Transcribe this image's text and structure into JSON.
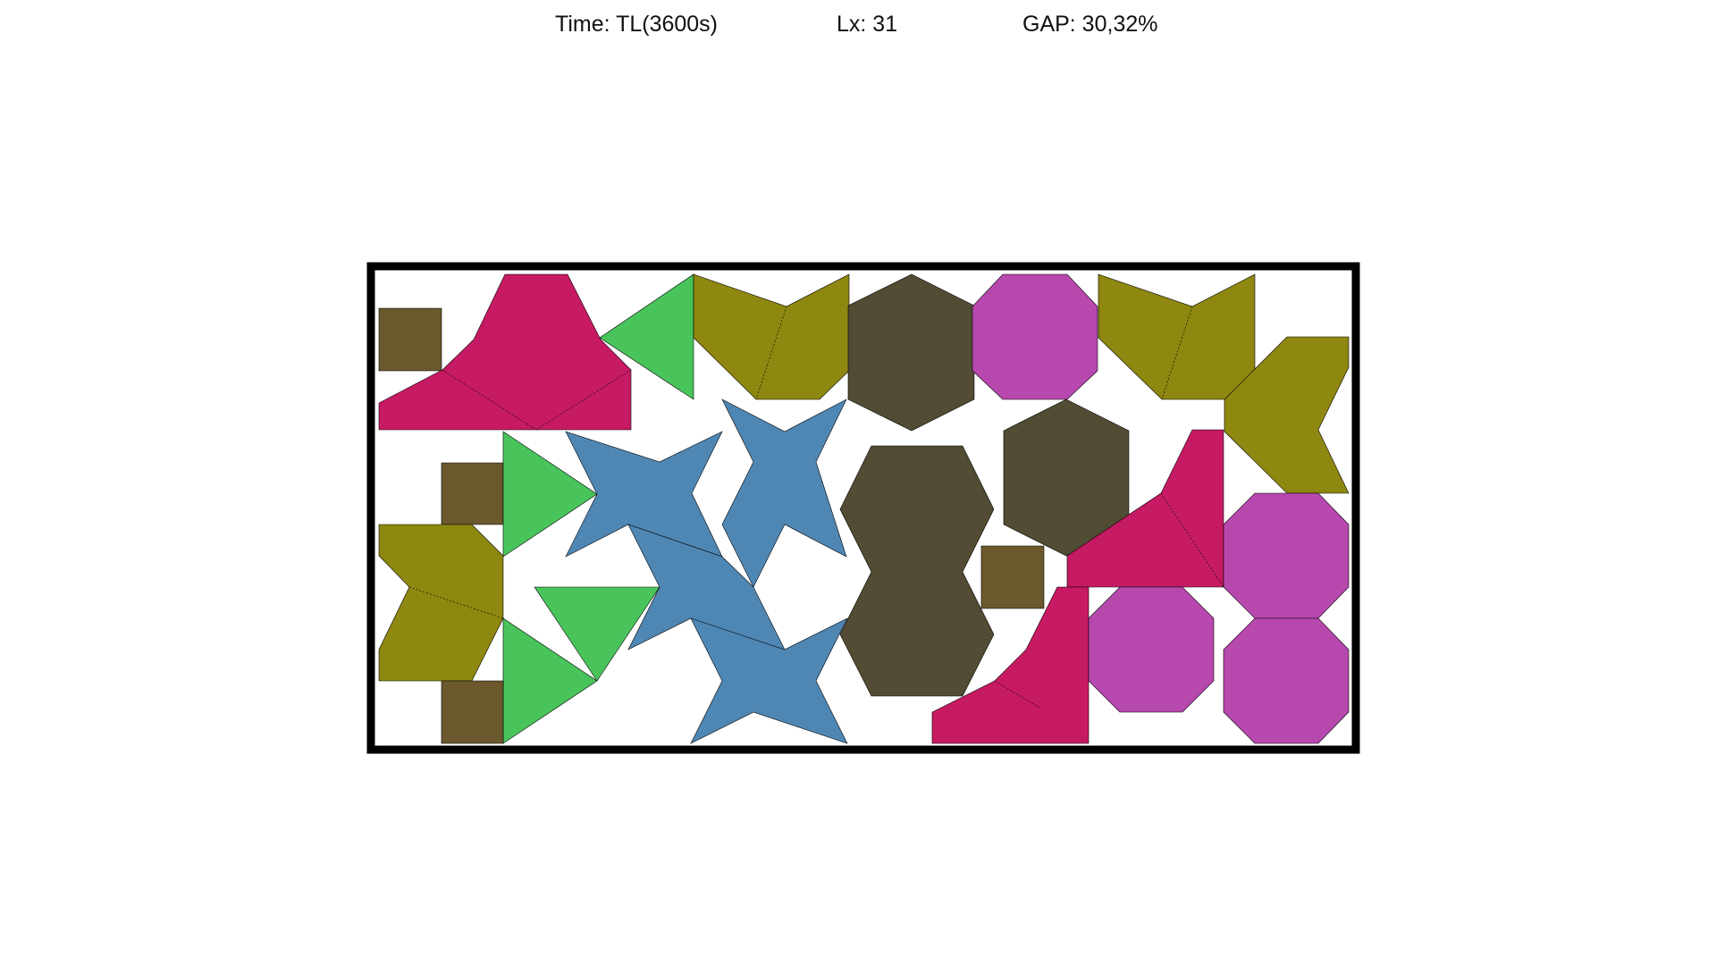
{
  "header": {
    "time": "Time: TL(3600s)",
    "lx": "Lx: 31",
    "gap": "GAP: 30,32%"
  },
  "colors": {
    "magenta": "#C71A64",
    "green": "#49C45B",
    "olive": "#8E8710",
    "dark_olive": "#514C33",
    "purple": "#B748AE",
    "brown": "#6B582D",
    "blue": "#4F87B4",
    "container_border": "#000000",
    "background": "#FFFFFF"
  },
  "pieces": [
    {
      "shape": "square",
      "color": "brown"
    },
    {
      "shape": "triangle-composite",
      "color": "magenta"
    },
    {
      "shape": "triangle",
      "color": "green"
    },
    {
      "shape": "bowtie",
      "color": "olive"
    },
    {
      "shape": "hexagon",
      "color": "dark_olive"
    },
    {
      "shape": "octagon",
      "color": "purple"
    },
    {
      "shape": "bowtie",
      "color": "olive"
    },
    {
      "shape": "arrow",
      "color": "olive"
    },
    {
      "shape": "square",
      "color": "brown"
    },
    {
      "shape": "triangle",
      "color": "green"
    },
    {
      "shape": "star",
      "color": "blue"
    },
    {
      "shape": "star",
      "color": "blue"
    },
    {
      "shape": "double-hexagon",
      "color": "dark_olive"
    },
    {
      "shape": "hexagon",
      "color": "dark_olive"
    },
    {
      "shape": "triangle-composite",
      "color": "magenta"
    },
    {
      "shape": "octagon",
      "color": "purple"
    },
    {
      "shape": "arrow",
      "color": "olive"
    },
    {
      "shape": "triangle",
      "color": "green"
    },
    {
      "shape": "square",
      "color": "brown"
    },
    {
      "shape": "star",
      "color": "blue"
    },
    {
      "shape": "star",
      "color": "blue"
    },
    {
      "shape": "triangle",
      "color": "green"
    },
    {
      "shape": "square",
      "color": "brown"
    },
    {
      "shape": "triangle-composite",
      "color": "magenta"
    },
    {
      "shape": "octagon",
      "color": "purple"
    },
    {
      "shape": "octagon",
      "color": "purple"
    }
  ]
}
